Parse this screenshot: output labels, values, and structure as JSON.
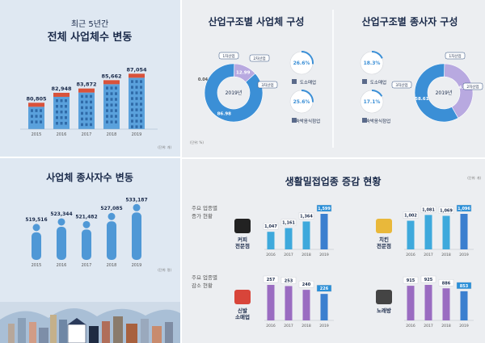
{
  "top_left": {
    "subtitle": "최근 5년간",
    "title": "전체 사업체수 변동",
    "unit": "(단위: 개)",
    "chart_data": {
      "type": "bar",
      "title": "전체 사업체수 변동",
      "categories": [
        "2015",
        "2016",
        "2017",
        "2018",
        "2019"
      ],
      "values": [
        80805,
        82948,
        83872,
        85662,
        87054
      ],
      "value_labels": [
        "80,805",
        "82,948",
        "83,872",
        "85,662",
        "87,054"
      ]
    }
  },
  "bottom_left": {
    "title": "사업체 종사자수 변동",
    "unit": "(단위: 명)",
    "chart_data": {
      "type": "bar",
      "title": "사업체 종사자수 변동",
      "categories": [
        "2015",
        "2016",
        "2017",
        "2018",
        "2019"
      ],
      "values": [
        519516,
        523344,
        521482,
        527085,
        533187
      ],
      "value_labels": [
        "519,516",
        "523,344",
        "521,482",
        "527,085",
        "533,187"
      ]
    }
  },
  "industry_structure": {
    "unit": "(단위: %)",
    "business": {
      "title": "산업구조별 사업체 구성",
      "center": "2019년",
      "chart_data": {
        "type": "pie",
        "title": "산업구조별 사업체 구성",
        "categories": [
          "1차산업",
          "2차산업",
          "3차산업"
        ],
        "values": [
          0.04,
          12.99,
          86.98
        ],
        "value_labels": [
          "0.04",
          "12.99",
          "86.98"
        ]
      },
      "sub": [
        {
          "label": "도소매업",
          "value": 26.6,
          "value_label": "26.6%"
        },
        {
          "label": "숙박음식점업",
          "value": 25.6,
          "value_label": "25.6%"
        }
      ]
    },
    "workers": {
      "title": "산업구조별 종사자 구성",
      "center": "2019년",
      "chart_data": {
        "type": "pie",
        "title": "산업구조별 종사자 구성",
        "categories": [
          "1차산업",
          "2차산업",
          "3차산업"
        ],
        "values": [
          0.03,
          41.36,
          58.61
        ],
        "value_labels": [
          "0.03",
          "41.36",
          "58.61"
        ]
      },
      "sub": [
        {
          "label": "도소매업",
          "value": 18.3,
          "value_label": "18.3%"
        },
        {
          "label": "숙박음식점업",
          "value": 17.1,
          "value_label": "17.1%"
        }
      ]
    }
  },
  "living": {
    "title": "생활밀접업종 증감 현황",
    "unit": "(단위: 개)",
    "inc_label": [
      "주요 업종별",
      "증가 현황"
    ],
    "dec_label": [
      "주요 업종별",
      "감소 현황"
    ],
    "colors": {
      "inc": "#3ea9dc",
      "dec": "#9a6cc1",
      "last_inc": "#3b7fcf"
    },
    "charts": [
      {
        "name": [
          "커피",
          "전문점"
        ],
        "icon": "coffee-cup-icon",
        "group": "inc",
        "chart_data": {
          "type": "bar",
          "categories": [
            "2016",
            "2017",
            "2018",
            "2019"
          ],
          "values": [
            1047,
            1161,
            1364,
            1599
          ],
          "value_labels": [
            "1,047",
            "1,161",
            "1,364",
            "1,599"
          ]
        }
      },
      {
        "name": [
          "치킨",
          "전문점"
        ],
        "icon": "chicken-icon",
        "group": "inc",
        "chart_data": {
          "type": "bar",
          "categories": [
            "2016",
            "2017",
            "2018",
            "2019"
          ],
          "values": [
            1002,
            1081,
            1069,
            1096
          ],
          "value_labels": [
            "1,002",
            "1,081",
            "1,069",
            "1,096"
          ]
        }
      },
      {
        "name": [
          "신발",
          "소매업"
        ],
        "icon": "shoe-icon",
        "group": "dec",
        "chart_data": {
          "type": "bar",
          "categories": [
            "2016",
            "2017",
            "2018",
            "2019"
          ],
          "values": [
            257,
            253,
            240,
            226
          ],
          "value_labels": [
            "257",
            "253",
            "240",
            "226"
          ]
        }
      },
      {
        "name": [
          "노래방"
        ],
        "icon": "microphone-icon",
        "group": "dec",
        "chart_data": {
          "type": "bar",
          "categories": [
            "2016",
            "2017",
            "2018",
            "2019"
          ],
          "values": [
            915,
            925,
            886,
            853
          ],
          "value_labels": [
            "915",
            "925",
            "886",
            "853"
          ]
        }
      }
    ]
  }
}
